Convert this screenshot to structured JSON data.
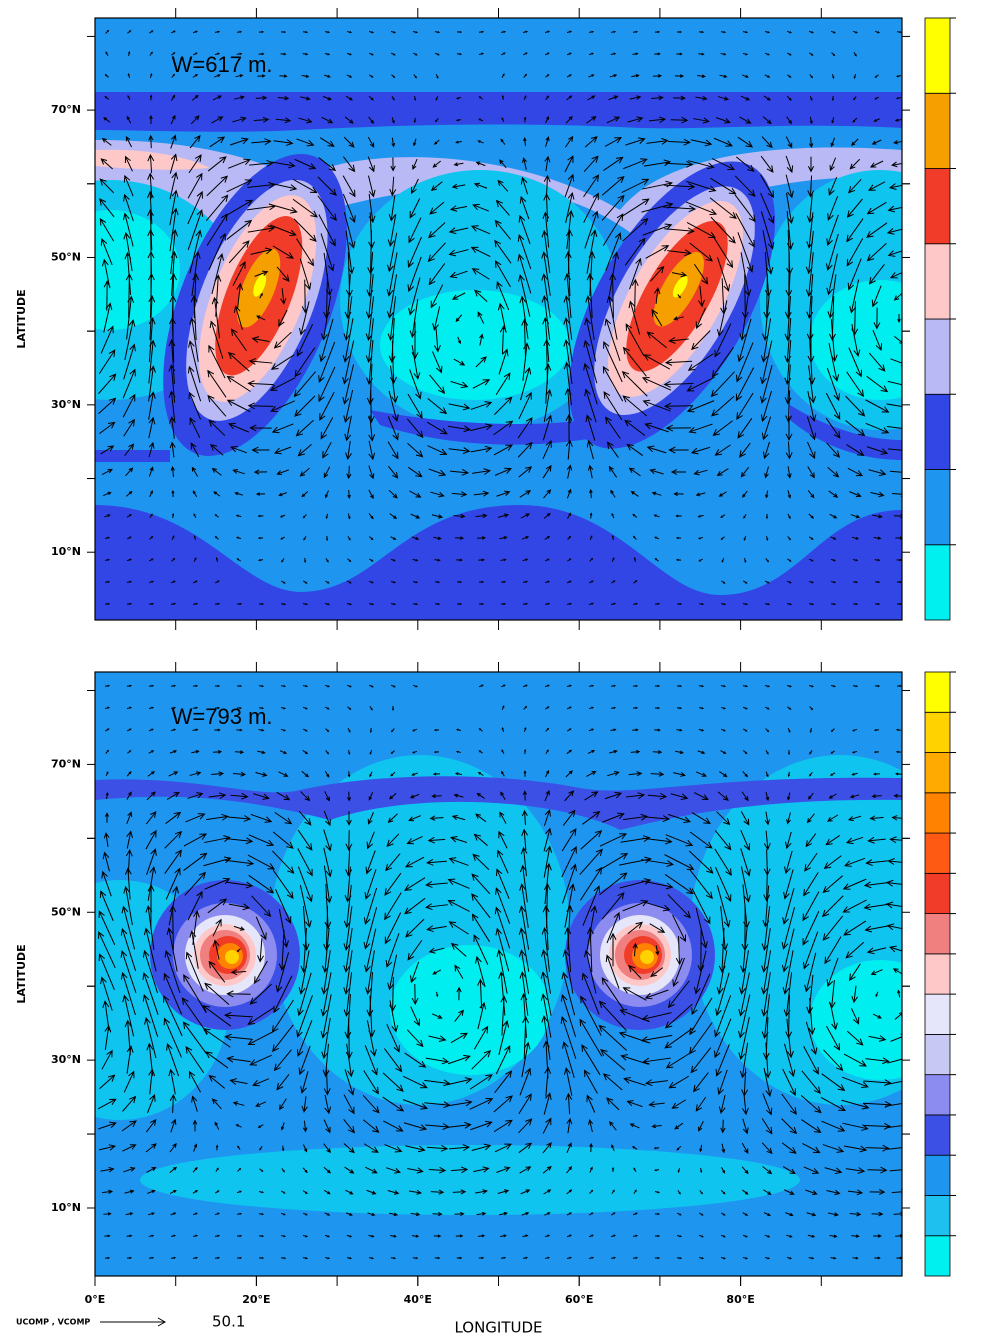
{
  "chart_data": [
    {
      "type": "contour",
      "annotation": "W=617 m.",
      "ylabel": "LATITUDE",
      "xlim": [
        0,
        100
      ],
      "ylim": [
        0.8,
        82.5
      ],
      "yticks": [
        {
          "value": 10,
          "label": "10°N"
        },
        {
          "value": 30,
          "label": "30°N"
        },
        {
          "value": 50,
          "label": "50°N"
        },
        {
          "value": 70,
          "label": "70°N"
        }
      ],
      "colorbar_colors": [
        "#00f0f0",
        "#1e96f0",
        "#3246e6",
        "#b9b9f5",
        "#ffc8c8",
        "#f03c28",
        "#f5a000",
        "#ffff00"
      ]
    },
    {
      "type": "contour",
      "annotation": "W=793 m.",
      "ylabel": "LATITUDE",
      "xlabel": "LONGITUDE",
      "xlim": [
        0,
        100
      ],
      "ylim": [
        0.8,
        82.5
      ],
      "xticks": [
        {
          "value": 0,
          "label": "0°E"
        },
        {
          "value": 20,
          "label": "20°E"
        },
        {
          "value": 40,
          "label": "40°E"
        },
        {
          "value": 60,
          "label": "60°E"
        },
        {
          "value": 80,
          "label": "80°E"
        }
      ],
      "yticks": [
        {
          "value": 10,
          "label": "10°N"
        },
        {
          "value": 30,
          "label": "30°N"
        },
        {
          "value": 50,
          "label": "50°N"
        },
        {
          "value": 70,
          "label": "70°N"
        }
      ],
      "colorbar_colors": [
        "#00f0f0",
        "#1ec0f0",
        "#1e96f0",
        "#3c50e6",
        "#8c8cf0",
        "#c8c8f5",
        "#e6e6fa",
        "#ffc8c8",
        "#f08080",
        "#f03c28",
        "#ff5a14",
        "#ff8200",
        "#ffaa00",
        "#ffd200",
        "#ffff00"
      ],
      "vector_key": {
        "label": "UCOMP , VCOMP",
        "value": 50.1
      }
    }
  ]
}
